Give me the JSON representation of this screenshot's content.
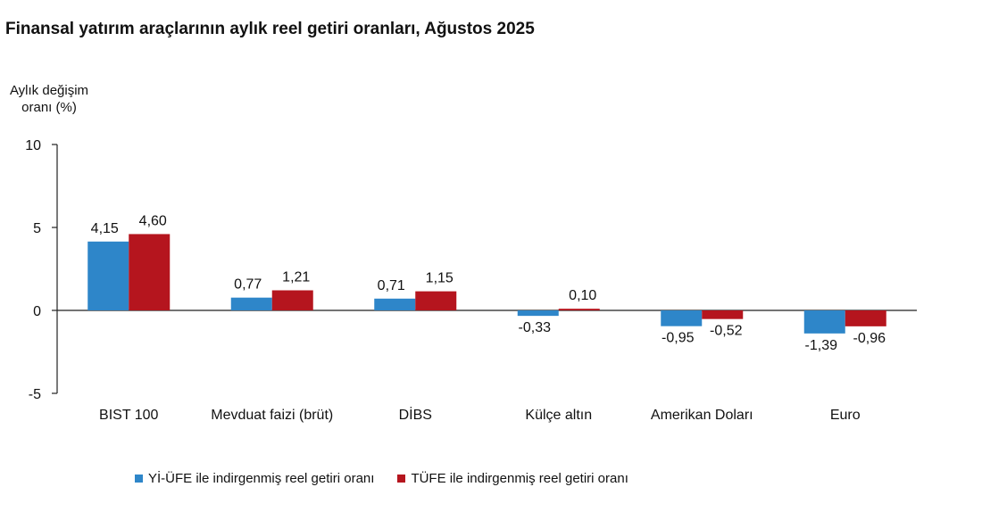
{
  "chart_data": {
    "type": "bar",
    "title": "Finansal yatırım araçlarının aylık reel getiri oranları, Ağustos 2025",
    "ylabel_lines": [
      "Aylık değişim",
      "oranı (%)"
    ],
    "xlabel": "",
    "ylim": [
      -5,
      10
    ],
    "yticks": [
      10,
      5,
      0,
      -5
    ],
    "ytick_labels": [
      "10",
      "5",
      "0",
      "-5"
    ],
    "grid": false,
    "legend_position": "bottom",
    "categories": [
      "BIST 100",
      "Mevduat faizi (brüt)",
      "DİBS",
      "Külçe altın",
      "Amerikan Doları",
      "Euro"
    ],
    "series": [
      {
        "name": "Yİ-ÜFE ile indirgenmiş reel getiri oranı",
        "color": "#2E86C9",
        "values": [
          4.15,
          0.77,
          0.71,
          -0.33,
          -0.95,
          -1.39
        ],
        "labels": [
          "4,15",
          "0,77",
          "0,71",
          "-0,33",
          "-0,95",
          "-1,39"
        ]
      },
      {
        "name": "TÜFE ile indirgenmiş reel getiri oranı",
        "color": "#B5151E",
        "values": [
          4.6,
          1.21,
          1.15,
          0.1,
          -0.52,
          -0.96
        ],
        "labels": [
          "4,60",
          "1,21",
          "1,15",
          "0,10",
          "-0,52",
          "-0,96"
        ]
      }
    ]
  }
}
